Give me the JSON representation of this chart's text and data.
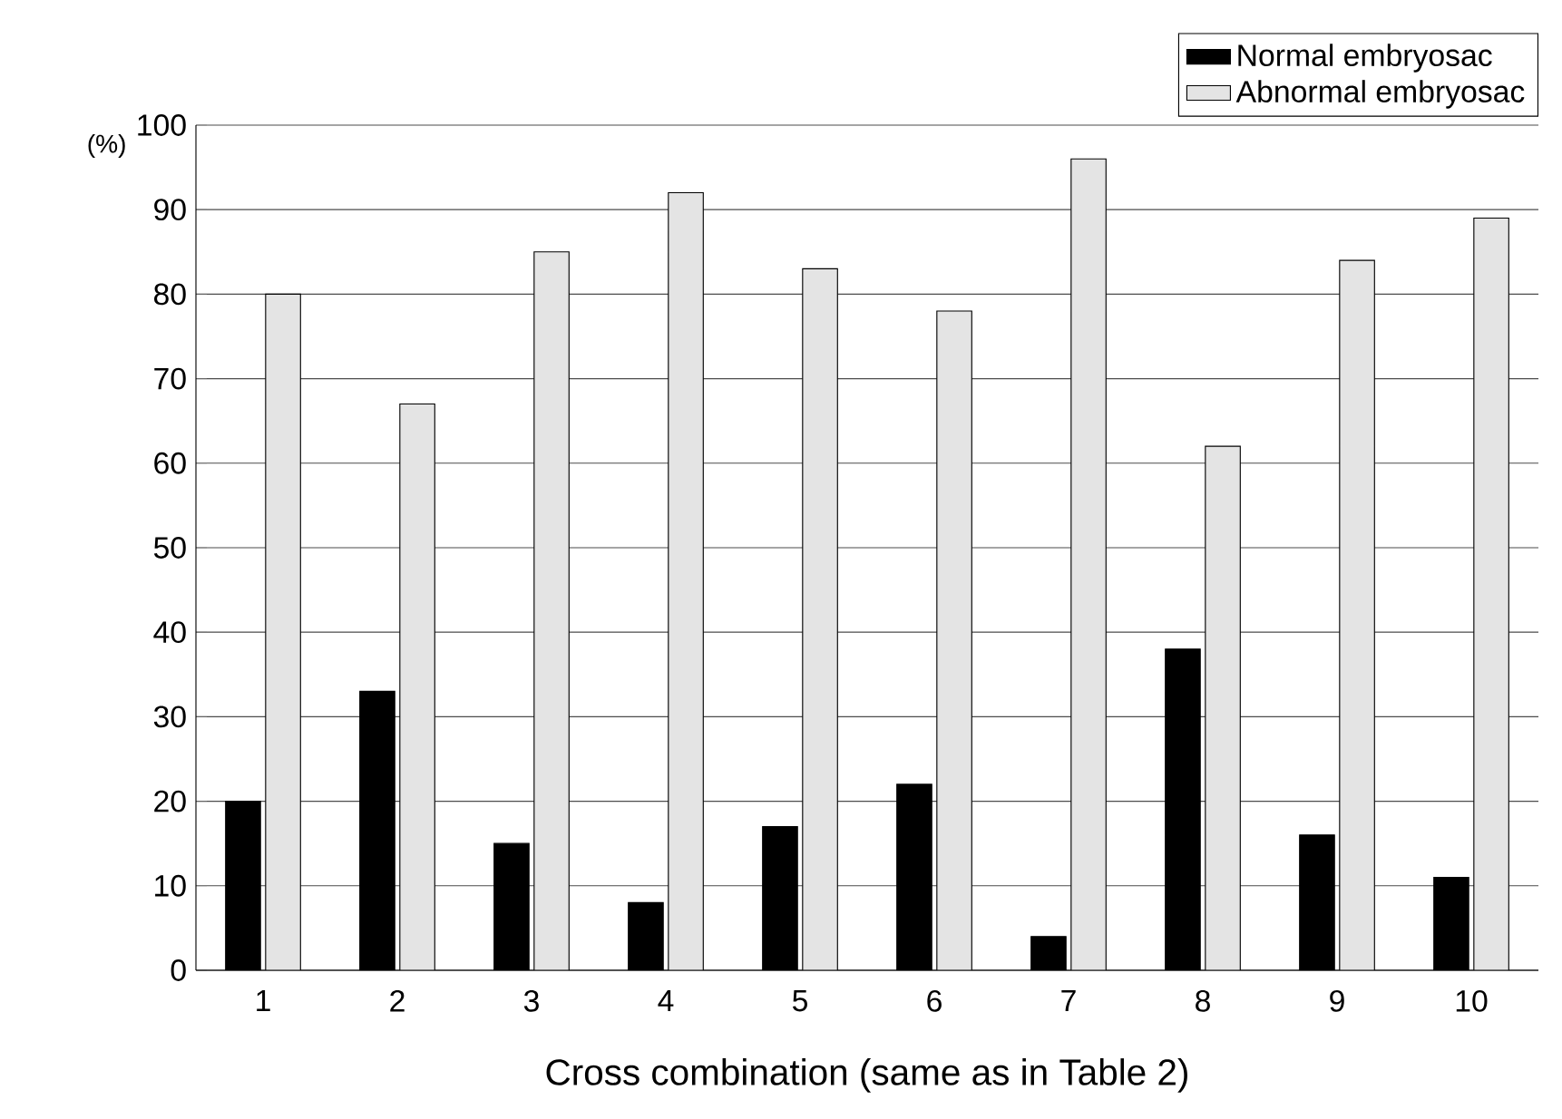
{
  "chart_data": {
    "type": "bar",
    "xlabel": "Cross combination (same as in Table 2)",
    "ylabel": "(%)",
    "categories": [
      "1",
      "2",
      "3",
      "4",
      "5",
      "6",
      "7",
      "8",
      "9",
      "10"
    ],
    "series": [
      {
        "name": "Normal embryosac",
        "color": "#000000",
        "values": [
          20,
          33,
          15,
          8,
          17,
          22,
          4,
          38,
          16,
          11
        ]
      },
      {
        "name": "Abnormal embryosac",
        "color": "#e4e4e4",
        "values": [
          80,
          67,
          85,
          92,
          83,
          78,
          96,
          62,
          84,
          89
        ]
      }
    ],
    "ylim": [
      0,
      100
    ],
    "yticks": [
      0,
      10,
      20,
      30,
      40,
      50,
      60,
      70,
      80,
      90,
      100
    ],
    "grid": "y",
    "legend": "top right"
  }
}
